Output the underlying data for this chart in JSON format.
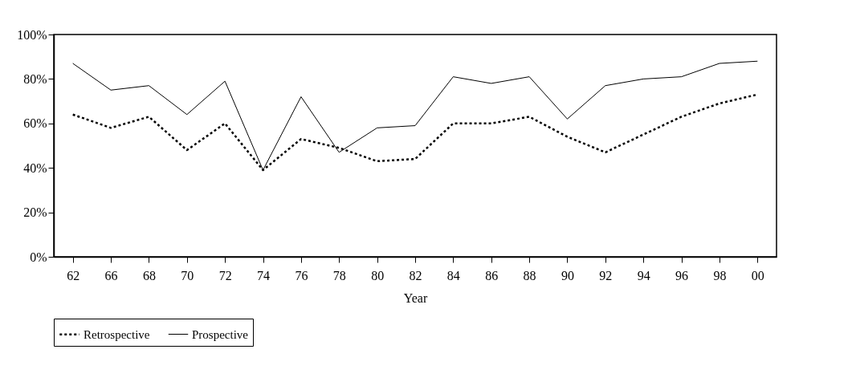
{
  "chart_data": {
    "type": "line",
    "xlabel": "Year",
    "categories": [
      "62",
      "66",
      "68",
      "70",
      "72",
      "74",
      "76",
      "78",
      "80",
      "82",
      "84",
      "86",
      "88",
      "90",
      "92",
      "94",
      "96",
      "98",
      "00"
    ],
    "ylim": [
      0,
      100
    ],
    "yticks": [
      {
        "value": 0,
        "label": "0%"
      },
      {
        "value": 20,
        "label": "20%"
      },
      {
        "value": 40,
        "label": "40%"
      },
      {
        "value": 60,
        "label": "60%"
      },
      {
        "value": 80,
        "label": "80%"
      },
      {
        "value": 100,
        "label": "100%"
      }
    ],
    "grid": false,
    "legend": "bottom",
    "series": [
      {
        "name": "Retrospective",
        "color": "#000000",
        "line_style": "dotted",
        "values": [
          64,
          58,
          63,
          48,
          60,
          39,
          53,
          49,
          43,
          44,
          60,
          60,
          63,
          54,
          47,
          55,
          63,
          69,
          73
        ]
      },
      {
        "name": "Prospective",
        "color": "#000000",
        "line_style": "solid",
        "values": [
          87,
          75,
          77,
          64,
          79,
          39,
          72,
          47,
          58,
          59,
          81,
          78,
          81,
          62,
          77,
          80,
          81,
          87,
          88
        ]
      }
    ]
  }
}
